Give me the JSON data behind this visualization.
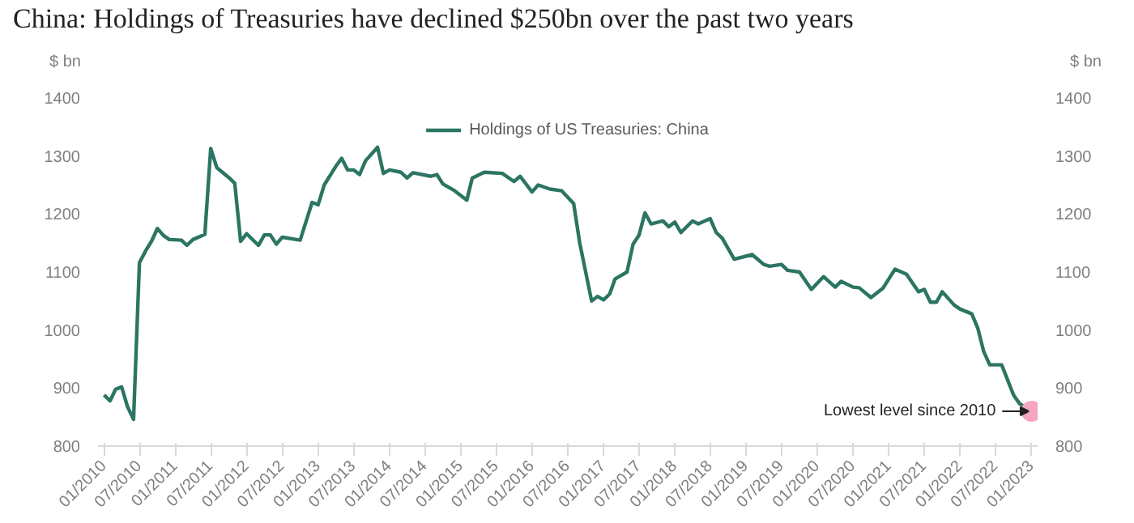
{
  "chart_data": {
    "type": "line",
    "title": "China: Holdings of Treasuries have declined $250bn over the past two years",
    "ylabel": "$ bn",
    "y2label": "$ bn",
    "x": [
      "2010-01",
      "2010-02",
      "2010-03",
      "2010-04",
      "2010-05",
      "2010-06",
      "2010-07",
      "2010-08",
      "2010-09",
      "2010-10",
      "2010-11",
      "2010-12",
      "2011-02",
      "2011-03",
      "2011-04",
      "2011-06",
      "2011-07",
      "2011-08",
      "2011-10",
      "2011-11",
      "2011-12",
      "2012-01",
      "2012-03",
      "2012-04",
      "2012-05",
      "2012-06",
      "2012-07",
      "2012-10",
      "2012-11",
      "2012-12",
      "2013-01",
      "2013-02",
      "2013-04",
      "2013-05",
      "2013-06",
      "2013-07",
      "2013-08",
      "2013-09",
      "2013-11",
      "2013-12",
      "2014-01",
      "2014-03",
      "2014-04",
      "2014-05",
      "2014-08",
      "2014-09",
      "2014-10",
      "2014-12",
      "2015-02",
      "2015-03",
      "2015-05",
      "2015-08",
      "2015-10",
      "2015-11",
      "2016-01",
      "2016-02",
      "2016-04",
      "2016-06",
      "2016-08",
      "2016-09",
      "2016-11",
      "2016-12",
      "2017-01",
      "2017-02",
      "2017-03",
      "2017-05",
      "2017-06",
      "2017-07",
      "2017-08",
      "2017-09",
      "2017-11",
      "2017-12",
      "2018-01",
      "2018-02",
      "2018-04",
      "2018-05",
      "2018-07",
      "2018-08",
      "2018-09",
      "2018-11",
      "2019-02",
      "2019-04",
      "2019-05",
      "2019-07",
      "2019-08",
      "2019-10",
      "2019-12",
      "2020-02",
      "2020-04",
      "2020-05",
      "2020-07",
      "2020-08",
      "2020-10",
      "2020-12",
      "2021-02",
      "2021-04",
      "2021-06",
      "2021-07",
      "2021-08",
      "2021-09",
      "2021-10",
      "2021-12",
      "2022-01",
      "2022-03",
      "2022-04",
      "2022-05",
      "2022-06",
      "2022-08",
      "2022-10",
      "2022-11",
      "2023-01"
    ],
    "series": [
      {
        "name": "Holdings of US Treasuries: China",
        "color": "#2b7562",
        "values": [
          888,
          878,
          898,
          902,
          868,
          846,
          1116,
          1136,
          1153,
          1175,
          1163,
          1156,
          1155,
          1146,
          1156,
          1165,
          1313,
          1280,
          1263,
          1253,
          1153,
          1166,
          1146,
          1164,
          1164,
          1148,
          1160,
          1155,
          1188,
          1220,
          1216,
          1250,
          1282,
          1296,
          1276,
          1276,
          1268,
          1292,
          1315,
          1270,
          1276,
          1272,
          1262,
          1271,
          1265,
          1268,
          1252,
          1240,
          1224,
          1262,
          1272,
          1270,
          1256,
          1265,
          1238,
          1250,
          1243,
          1240,
          1218,
          1150,
          1050,
          1058,
          1052,
          1062,
          1088,
          1100,
          1148,
          1163,
          1202,
          1183,
          1188,
          1178,
          1186,
          1168,
          1188,
          1183,
          1192,
          1168,
          1158,
          1122,
          1130,
          1113,
          1110,
          1113,
          1103,
          1100,
          1070,
          1092,
          1074,
          1084,
          1074,
          1073,
          1056,
          1072,
          1105,
          1096,
          1066,
          1070,
          1048,
          1048,
          1066,
          1043,
          1036,
          1028,
          1003,
          963,
          940,
          940,
          888,
          873,
          860
        ]
      }
    ],
    "annotations": [
      {
        "text": "Lowest level since 2010",
        "x": "2023-01",
        "y": 860
      }
    ],
    "xlim": [
      "2009-12",
      "2023-02"
    ],
    "xticks": [
      {
        "value": "2010-01",
        "label": "01/2010"
      },
      {
        "value": "2010-07",
        "label": "07/2010"
      },
      {
        "value": "2011-01",
        "label": "01/2011"
      },
      {
        "value": "2011-07",
        "label": "07/2011"
      },
      {
        "value": "2012-01",
        "label": "01/2012"
      },
      {
        "value": "2012-07",
        "label": "07/2012"
      },
      {
        "value": "2013-01",
        "label": "01/2013"
      },
      {
        "value": "2013-07",
        "label": "07/2013"
      },
      {
        "value": "2014-01",
        "label": "01/2014"
      },
      {
        "value": "2014-07",
        "label": "07/2014"
      },
      {
        "value": "2015-01",
        "label": "01/2015"
      },
      {
        "value": "2015-07",
        "label": "07/2015"
      },
      {
        "value": "2016-01",
        "label": "01/2016"
      },
      {
        "value": "2016-07",
        "label": "07/2016"
      },
      {
        "value": "2017-01",
        "label": "01/2017"
      },
      {
        "value": "2017-07",
        "label": "07/2017"
      },
      {
        "value": "2018-01",
        "label": "01/2018"
      },
      {
        "value": "2018-07",
        "label": "07/2018"
      },
      {
        "value": "2019-01",
        "label": "01/2019"
      },
      {
        "value": "2019-07",
        "label": "07/2019"
      },
      {
        "value": "2020-01",
        "label": "01/2020"
      },
      {
        "value": "2020-07",
        "label": "07/2020"
      },
      {
        "value": "2021-01",
        "label": "01/2021"
      },
      {
        "value": "2021-07",
        "label": "07/2021"
      },
      {
        "value": "2022-01",
        "label": "01/2022"
      },
      {
        "value": "2022-07",
        "label": "07/2022"
      },
      {
        "value": "2023-01",
        "label": "01/2023"
      }
    ],
    "ylim": [
      800,
      1400
    ],
    "yticks": [
      800,
      900,
      1000,
      1100,
      1200,
      1300,
      1400
    ],
    "y2lim": [
      800,
      1400
    ],
    "y2ticks": [
      800,
      900,
      1000,
      1100,
      1200,
      1300,
      1400
    ],
    "grid": false,
    "legend": "top",
    "marker": "none",
    "line_style": "solid"
  }
}
